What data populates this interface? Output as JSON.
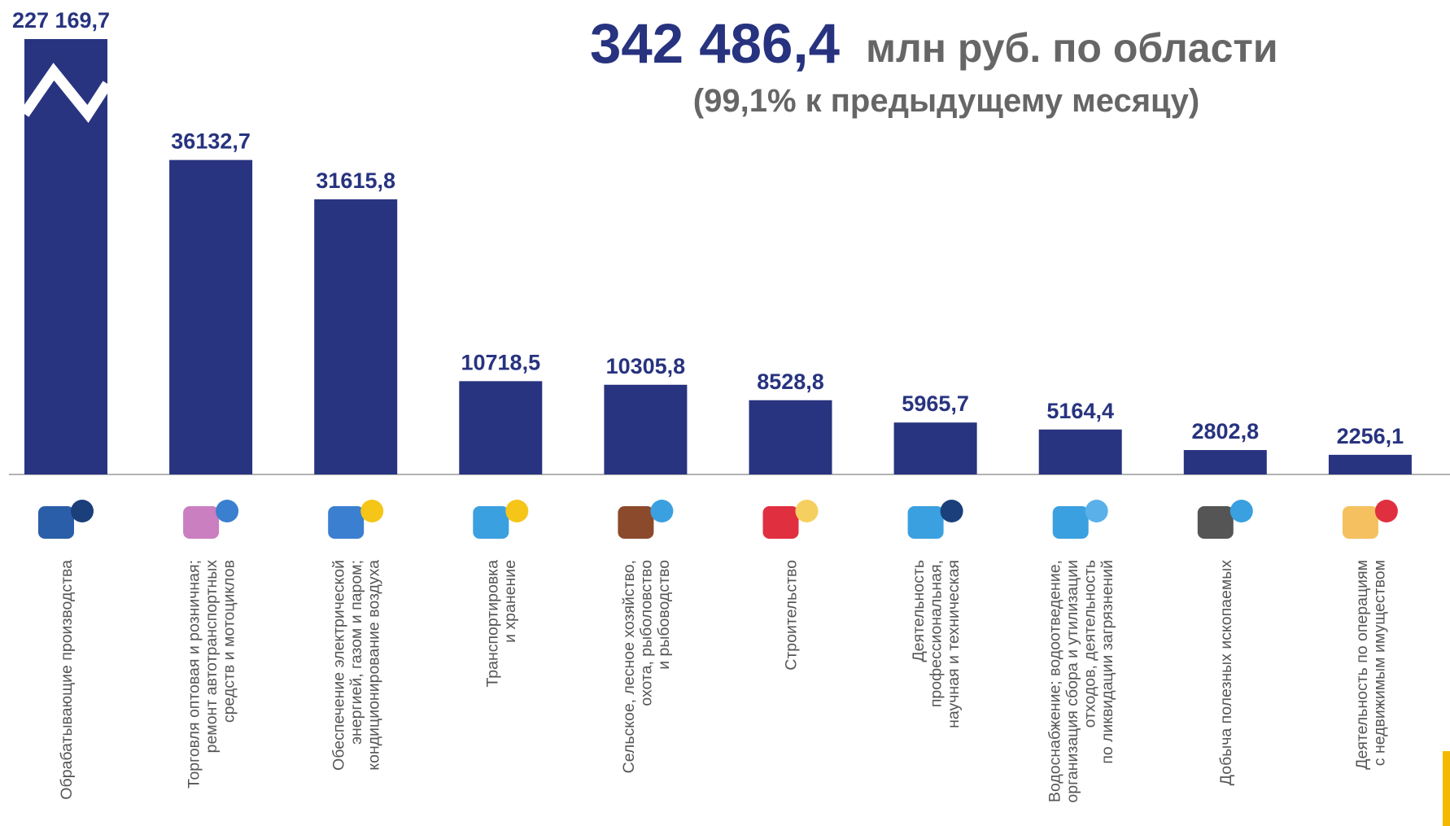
{
  "chart_data": {
    "type": "bar",
    "title": "342 486,4",
    "title_suffix": "млн руб. по области",
    "subtitle": "(99,1% к предыдущему месяцу)",
    "color": "#283480",
    "categories": [
      [
        "Обрабатывающие производства"
      ],
      [
        "Торговля оптовая и розничная;",
        "ремонт автотранспортных",
        "средств и мотоциклов"
      ],
      [
        "Обеспечение электрической",
        "энергией, газом и паром;",
        "кондиционирование воздуха"
      ],
      [
        "Транспортировка",
        "и хранение"
      ],
      [
        "Сельское, лесное хозяйство,",
        "охота, рыболовство",
        "и рыбоводство"
      ],
      [
        "Строительство"
      ],
      [
        "Деятельность",
        "профессиональная,",
        "научная и техническая"
      ],
      [
        "Водоснабжение; водоотведение,",
        "организация сбора и утилизации",
        "отходов, деятельность",
        "по ликвидации загрязнений"
      ],
      [
        "Добыча полезных ископаемых"
      ],
      [
        "Деятельность по операциям",
        "с недвижимым имуществом"
      ]
    ],
    "values": [
      227169.7,
      36132.7,
      31615.8,
      10718.5,
      10305.8,
      8528.8,
      5965.7,
      5164.4,
      2802.8,
      2256.1
    ],
    "value_labels": [
      "227 169,7",
      "36132,7",
      "31615,8",
      "10718,5",
      "10305,8",
      "8528,8",
      "5965,7",
      "5164,4",
      "2802,8",
      "2256,1"
    ]
  }
}
